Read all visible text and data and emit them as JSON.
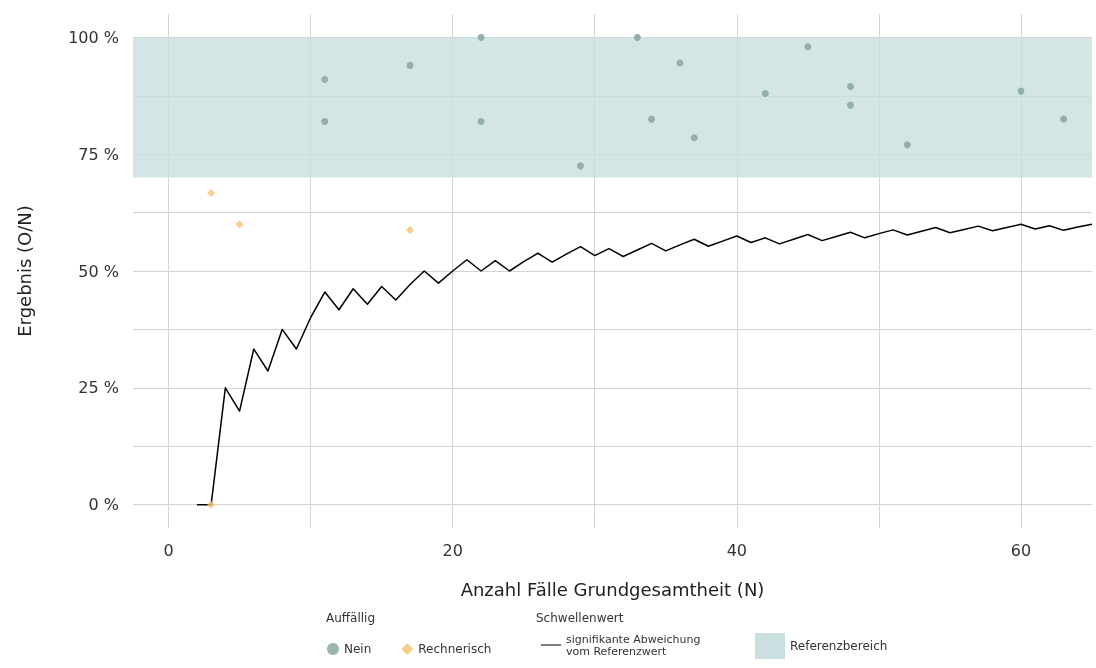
{
  "chart_data": {
    "type": "scatter",
    "xlabel": "Anzahl Fälle Grundgesamtheit (N)",
    "ylabel": "Ergebnis (O/N)",
    "legend_title": "Auffällig",
    "annotations": [
      "Schwellenwert"
    ],
    "xlim": [
      -2.5,
      65
    ],
    "ylim": [
      -5,
      105
    ],
    "xticks": [
      0,
      {
        "value": 10,
        "label": null
      },
      20,
      {
        "value": 30,
        "label": null
      },
      40,
      {
        "value": 50,
        "label": null
      },
      60
    ],
    "yticks": [
      {
        "value": 0,
        "label": "0 %"
      },
      {
        "value": 12.5,
        "label": null
      },
      {
        "value": 25,
        "label": "25 %"
      },
      {
        "value": 37.5,
        "label": null
      },
      {
        "value": 50,
        "label": "50 %"
      },
      {
        "value": 62.5,
        "label": null
      },
      {
        "value": 75,
        "label": "75 %"
      },
      {
        "value": 87.5,
        "label": null
      },
      {
        "value": 100,
        "label": "100 %"
      }
    ],
    "grid": true,
    "legend": "bottom",
    "marker": "circle",
    "bands": [
      {
        "axis": "y",
        "from": 70,
        "to": 100,
        "label": "Referenzbereich",
        "color": "#c9dfe0"
      }
    ],
    "series": [
      {
        "name": "Nein",
        "color": "#7fa39d",
        "x": [
          11,
          11,
          17,
          22,
          22,
          29,
          33,
          34,
          36,
          37,
          42,
          45,
          48,
          48,
          52,
          60,
          63
        ],
        "values": [
          91,
          82,
          94,
          100,
          82,
          72.5,
          100,
          82.5,
          94.5,
          78.5,
          88,
          98,
          89.5,
          85.5,
          77,
          88.5,
          82.5
        ]
      },
      {
        "name": "Rechnerisch",
        "type": "scatter",
        "marker": "diamond",
        "color": "#f2c46a",
        "x": [
          3,
          5,
          17,
          3
        ],
        "values": [
          66.7,
          60,
          58.8,
          0
        ]
      },
      {
        "name": "signifikante Abweichung vom Referenzwert",
        "type": "line",
        "marker": "none",
        "line_style": "solid",
        "color": "#000000",
        "x": [
          2,
          3,
          4,
          5,
          6,
          7,
          8,
          9,
          10,
          11,
          12,
          13,
          14,
          15,
          16,
          17,
          18,
          19,
          20,
          21,
          22,
          23,
          24,
          25,
          26,
          27,
          28,
          29,
          30,
          31,
          32,
          33,
          34,
          35,
          36,
          37,
          38,
          39,
          40,
          41,
          42,
          43,
          44,
          45,
          46,
          47,
          48,
          49,
          50,
          51,
          52,
          53,
          54,
          55,
          56,
          57,
          58,
          59,
          60,
          61,
          62,
          63,
          64,
          65
        ],
        "values": [
          0,
          0,
          25,
          20,
          33.3,
          28.6,
          37.5,
          33.3,
          40,
          45.5,
          41.7,
          46.2,
          42.9,
          46.7,
          43.8,
          47.1,
          50,
          47.4,
          50,
          52.4,
          50,
          52.2,
          50,
          52,
          53.8,
          51.9,
          53.6,
          55.2,
          53.3,
          54.8,
          53.1,
          54.5,
          55.9,
          54.3,
          55.6,
          56.8,
          55.3,
          56.4,
          57.5,
          56.1,
          57.1,
          55.8,
          56.8,
          57.8,
          56.5,
          57.4,
          58.3,
          57.1,
          58,
          58.8,
          57.7,
          58.5,
          59.3,
          58.2,
          58.9,
          59.6,
          58.6,
          59.3,
          60,
          59,
          59.7,
          58.7,
          59.4,
          60
        ]
      }
    ]
  }
}
